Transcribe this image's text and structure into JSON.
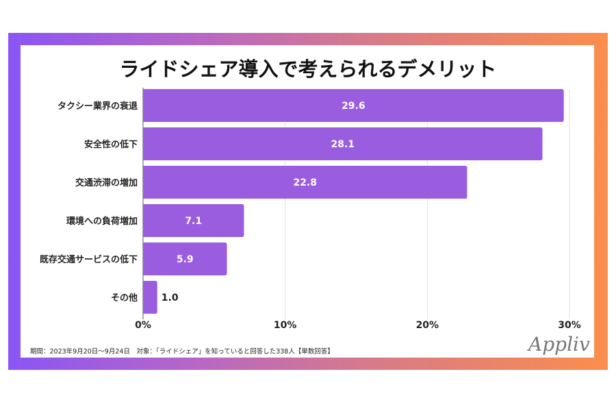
{
  "chart_data": {
    "type": "bar",
    "orientation": "horizontal",
    "title": "ライドシェア導入で考えられるデメリット",
    "categories": [
      "タクシー業界の衰退",
      "安全性の低下",
      "交通渋滞の増加",
      "環境への負荷増加",
      "既存交通サービスの低下",
      "その他"
    ],
    "values": [
      29.6,
      28.1,
      22.8,
      7.1,
      5.9,
      1.0
    ],
    "value_labels": [
      "29.6",
      "28.1",
      "22.8",
      "7.1",
      "5.9",
      "1.0"
    ],
    "xlim": [
      0,
      30
    ],
    "x_ticks": [
      0,
      10,
      20,
      30
    ],
    "x_tick_labels": [
      "0%",
      "10%",
      "20%",
      "30%"
    ],
    "xlabel": "",
    "ylabel": "",
    "grid": "vertical",
    "bar_color": "#9b5ddf"
  },
  "footnote": "期間：2023年9月20日～9月24日　対象：「ライドシェア」を知っていると回答した338人【単数回答】",
  "logo": "Appliv"
}
